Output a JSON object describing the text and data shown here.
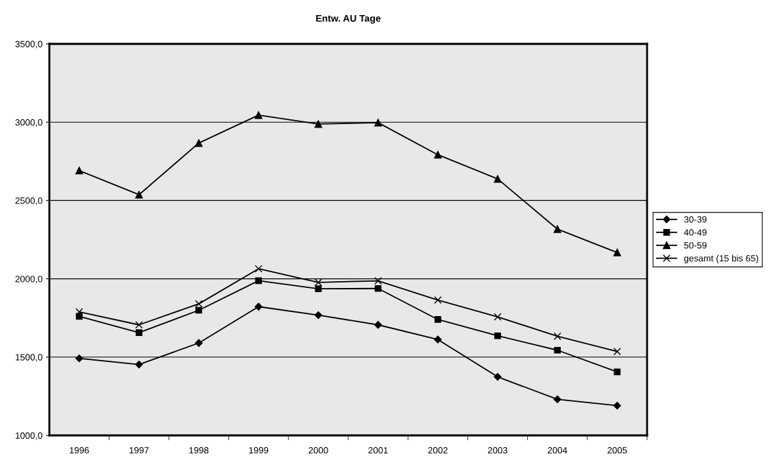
{
  "chart_data": {
    "type": "line",
    "title": "Entw. AU Tage",
    "categories": [
      "1996",
      "1997",
      "1998",
      "1999",
      "2000",
      "2001",
      "2002",
      "2003",
      "2004",
      "2005"
    ],
    "series": [
      {
        "name": "30-39",
        "color": "#000000",
        "marker": "diamond",
        "values": [
          1492,
          1453,
          1590,
          1822,
          1768,
          1706,
          1612,
          1374,
          1230,
          1190
        ]
      },
      {
        "name": "40-49",
        "color": "#000000",
        "marker": "square",
        "values": [
          1760,
          1656,
          1799,
          1988,
          1936,
          1938,
          1740,
          1636,
          1544,
          1406
        ]
      },
      {
        "name": "50-59",
        "color": "#000000",
        "marker": "triangle",
        "values": [
          2691,
          2537,
          2867,
          3045,
          2988,
          2997,
          2792,
          2638,
          2317,
          2168
        ]
      },
      {
        "name": "gesamt (15 bis 65)",
        "color": "#000000",
        "marker": "cross",
        "values": [
          1789,
          1706,
          1840,
          2064,
          1977,
          1987,
          1864,
          1757,
          1633,
          1536
        ]
      }
    ],
    "ylim": [
      1000,
      3500
    ],
    "yticks": [
      {
        "value": 1000,
        "label": "1000,0"
      },
      {
        "value": 1500,
        "label": "1500,0"
      },
      {
        "value": 2000,
        "label": "2000,0"
      },
      {
        "value": 2500,
        "label": "2500,0"
      },
      {
        "value": 3000,
        "label": "3000,0"
      },
      {
        "value": 3500,
        "label": "3500,0"
      }
    ],
    "grid": "y",
    "legend": "right",
    "line_style": "solid"
  }
}
